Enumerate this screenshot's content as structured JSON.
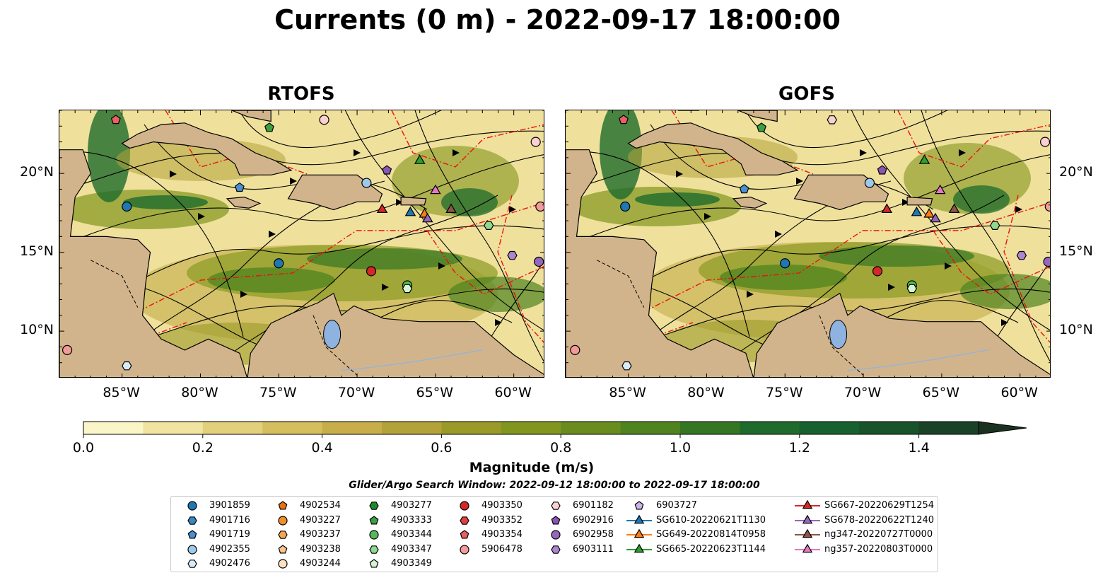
{
  "title": "Currents (0 m) - 2022-09-17 18:00:00",
  "panels": [
    {
      "id": "rtofs",
      "title": "RTOFS"
    },
    {
      "id": "gofs",
      "title": "GOFS"
    }
  ],
  "map_extent": {
    "lon": [
      -89,
      -58
    ],
    "lat": [
      7,
      24
    ]
  },
  "lat_ticks": [
    "20°N",
    "15°N",
    "10°N"
  ],
  "lat_values": [
    20,
    15,
    10
  ],
  "lon_ticks": [
    "85°W",
    "80°W",
    "75°W",
    "70°W",
    "65°W",
    "60°W"
  ],
  "lon_values": [
    -85,
    -80,
    -75,
    -70,
    -65,
    -60
  ],
  "colorbar": {
    "label": "Magnitude (m/s)",
    "ticks": [
      "0.0",
      "0.2",
      "0.4",
      "0.6",
      "0.8",
      "1.0",
      "1.2",
      "1.4"
    ],
    "tick_values": [
      0,
      0.2,
      0.4,
      0.6,
      0.8,
      1.0,
      1.2,
      1.4
    ],
    "range": [
      0,
      1.5
    ],
    "colors": [
      "#fbf6c8",
      "#f0e4a0",
      "#e3d07c",
      "#d5be5e",
      "#c8ae4a",
      "#b3a23a",
      "#9a9a28",
      "#82951e",
      "#6a8c1e",
      "#4f8320",
      "#357624",
      "#1f6b2c",
      "#176030",
      "#18532b",
      "#1a4226",
      "#1b3120"
    ]
  },
  "search_window": "Glider/Argo Search Window: 2022-09-12 18:00:00 to 2022-09-17 18:00:00",
  "legend": {
    "columns": [
      [
        {
          "label": "3901859",
          "marker": "circle",
          "color": "#1f77b4"
        },
        {
          "label": "4901716",
          "marker": "hexagon",
          "color": "#3a86c0"
        },
        {
          "label": "4901719",
          "marker": "pentagon",
          "color": "#4a90d0"
        },
        {
          "label": "4902355",
          "marker": "circle",
          "color": "#9ecae9"
        },
        {
          "label": "4902476",
          "marker": "hexagon",
          "color": "#d8ecf8"
        }
      ],
      [
        {
          "label": "4902534",
          "marker": "pentagon",
          "color": "#e8720f"
        },
        {
          "label": "4903227",
          "marker": "circle",
          "color": "#f28e2b"
        },
        {
          "label": "4903237",
          "marker": "hexagon",
          "color": "#f7a452"
        },
        {
          "label": "4903238",
          "marker": "pentagon",
          "color": "#fbc58c"
        },
        {
          "label": "4903244",
          "marker": "circle",
          "color": "#fde3c3"
        }
      ],
      [
        {
          "label": "4903277",
          "marker": "hexagon",
          "color": "#1a8a2a"
        },
        {
          "label": "4903333",
          "marker": "pentagon",
          "color": "#3aa040"
        },
        {
          "label": "4903344",
          "marker": "circle",
          "color": "#59b85a"
        },
        {
          "label": "4903347",
          "marker": "hexagon",
          "color": "#90d890"
        },
        {
          "label": "4903349",
          "marker": "pentagon",
          "color": "#d3f5d0"
        }
      ],
      [
        {
          "label": "4903350",
          "marker": "circle",
          "color": "#d62728"
        },
        {
          "label": "4903352",
          "marker": "hexagon",
          "color": "#e04040"
        },
        {
          "label": "4903354",
          "marker": "pentagon",
          "color": "#e86060"
        },
        {
          "label": "5906478",
          "marker": "circle",
          "color": "#f39a9a"
        }
      ],
      [
        {
          "label": "6901182",
          "marker": "hexagon",
          "color": "#fbd0d0"
        },
        {
          "label": "6902916",
          "marker": "pentagon",
          "color": "#8a55b5"
        },
        {
          "label": "6902958",
          "marker": "circle",
          "color": "#9467bd"
        },
        {
          "label": "6903111",
          "marker": "hexagon",
          "color": "#ad86d0"
        }
      ],
      [
        {
          "label": "6903727",
          "marker": "pentagon",
          "color": "#cdb3e6"
        },
        {
          "label": "SG610-20220621T1130",
          "marker": "triangle",
          "color": "#1f77b4"
        },
        {
          "label": "SG649-20220814T0958",
          "marker": "triangle",
          "color": "#ff7f0e"
        },
        {
          "label": "SG665-20220623T1144",
          "marker": "triangle",
          "color": "#2ca02c"
        }
      ],
      [
        {
          "label": "SG667-20220629T1254",
          "marker": "triangle",
          "color": "#d62728"
        },
        {
          "label": "SG678-20220622T1240",
          "marker": "triangle",
          "color": "#9467bd"
        },
        {
          "label": "ng347-20220727T0000",
          "marker": "triangle",
          "color": "#8c564b"
        },
        {
          "label": "ng357-20220803T0000",
          "marker": "triangle",
          "color": "#e377c2"
        }
      ]
    ]
  },
  "platforms_rtofs": [
    {
      "lon": -84.7,
      "lat": 17.9,
      "marker": "circle",
      "color": "#1f77b4"
    },
    {
      "lon": -77.5,
      "lat": 19.1,
      "marker": "pentagon",
      "color": "#4a90d0"
    },
    {
      "lon": -75.0,
      "lat": 14.3,
      "marker": "circle",
      "color": "#1f77b4"
    },
    {
      "lon": -69.4,
      "lat": 19.4,
      "marker": "circle",
      "color": "#9ecae9"
    },
    {
      "lon": -84.7,
      "lat": 7.8,
      "marker": "hexagon",
      "color": "#d8ecf8"
    },
    {
      "lon": -75.6,
      "lat": 22.9,
      "marker": "pentagon",
      "color": "#3aa040"
    },
    {
      "lon": -68.1,
      "lat": 20.2,
      "marker": "pentagon",
      "color": "#8a55b5"
    },
    {
      "lon": -66.0,
      "lat": 20.8,
      "marker": "triangle",
      "color": "#2ca02c"
    },
    {
      "lon": -68.4,
      "lat": 17.7,
      "marker": "triangle",
      "color": "#d62728"
    },
    {
      "lon": -66.6,
      "lat": 17.5,
      "marker": "triangle",
      "color": "#1f77b4"
    },
    {
      "lon": -65.7,
      "lat": 17.4,
      "marker": "triangle",
      "color": "#ff7f0e"
    },
    {
      "lon": -65.5,
      "lat": 17.1,
      "marker": "triangle",
      "color": "#9467bd"
    },
    {
      "lon": -64.0,
      "lat": 17.7,
      "marker": "triangle",
      "color": "#8c564b"
    },
    {
      "lon": -65.0,
      "lat": 18.9,
      "marker": "triangle",
      "color": "#e377c2"
    },
    {
      "lon": -69.1,
      "lat": 13.8,
      "marker": "circle",
      "color": "#d62728"
    },
    {
      "lon": -66.8,
      "lat": 12.9,
      "marker": "circle",
      "color": "#59b85a"
    },
    {
      "lon": -66.8,
      "lat": 12.7,
      "marker": "hexagon",
      "color": "#d3f5d0"
    },
    {
      "lon": -61.6,
      "lat": 16.7,
      "marker": "hexagon",
      "color": "#90d890"
    },
    {
      "lon": -60.1,
      "lat": 14.8,
      "marker": "hexagon",
      "color": "#ad86d0"
    },
    {
      "lon": -58.4,
      "lat": 14.4,
      "marker": "circle",
      "color": "#9467bd"
    },
    {
      "lon": -58.3,
      "lat": 17.9,
      "marker": "circle",
      "color": "#f39a9a"
    },
    {
      "lon": -58.6,
      "lat": 22.0,
      "marker": "circle",
      "color": "#fbd0d0"
    },
    {
      "lon": -72.1,
      "lat": 23.4,
      "marker": "circle",
      "color": "#fbd0d0"
    },
    {
      "lon": -85.4,
      "lat": 23.4,
      "marker": "pentagon",
      "color": "#e86060"
    },
    {
      "lon": -88.5,
      "lat": 8.8,
      "marker": "circle",
      "color": "#f39a9a"
    }
  ],
  "platforms_gofs": [
    {
      "lon": -85.2,
      "lat": 17.9,
      "marker": "circle",
      "color": "#1f77b4"
    },
    {
      "lon": -77.6,
      "lat": 19.0,
      "marker": "pentagon",
      "color": "#4a90d0"
    },
    {
      "lon": -75.0,
      "lat": 14.3,
      "marker": "circle",
      "color": "#1f77b4"
    },
    {
      "lon": -69.6,
      "lat": 19.4,
      "marker": "circle",
      "color": "#9ecae9"
    },
    {
      "lon": -85.1,
      "lat": 7.8,
      "marker": "hexagon",
      "color": "#d8ecf8"
    },
    {
      "lon": -76.5,
      "lat": 22.9,
      "marker": "pentagon",
      "color": "#3aa040"
    },
    {
      "lon": -68.8,
      "lat": 20.2,
      "marker": "pentagon",
      "color": "#8a55b5"
    },
    {
      "lon": -66.1,
      "lat": 20.8,
      "marker": "triangle",
      "color": "#2ca02c"
    },
    {
      "lon": -68.5,
      "lat": 17.7,
      "marker": "triangle",
      "color": "#d62728"
    },
    {
      "lon": -66.6,
      "lat": 17.5,
      "marker": "triangle",
      "color": "#1f77b4"
    },
    {
      "lon": -65.8,
      "lat": 17.4,
      "marker": "triangle",
      "color": "#ff7f0e"
    },
    {
      "lon": -65.4,
      "lat": 17.1,
      "marker": "triangle",
      "color": "#9467bd"
    },
    {
      "lon": -64.2,
      "lat": 17.7,
      "marker": "triangle",
      "color": "#8c564b"
    },
    {
      "lon": -65.1,
      "lat": 18.9,
      "marker": "triangle",
      "color": "#e377c2"
    },
    {
      "lon": -69.1,
      "lat": 13.8,
      "marker": "circle",
      "color": "#d62728"
    },
    {
      "lon": -66.9,
      "lat": 12.9,
      "marker": "circle",
      "color": "#59b85a"
    },
    {
      "lon": -66.9,
      "lat": 12.7,
      "marker": "hexagon",
      "color": "#d3f5d0"
    },
    {
      "lon": -61.6,
      "lat": 16.7,
      "marker": "hexagon",
      "color": "#90d890"
    },
    {
      "lon": -59.9,
      "lat": 14.8,
      "marker": "hexagon",
      "color": "#ad86d0"
    },
    {
      "lon": -58.2,
      "lat": 14.4,
      "marker": "circle",
      "color": "#9467bd"
    },
    {
      "lon": -58.1,
      "lat": 17.9,
      "marker": "circle",
      "color": "#f39a9a"
    },
    {
      "lon": -58.4,
      "lat": 22.0,
      "marker": "circle",
      "color": "#fbd0d0"
    },
    {
      "lon": -72.0,
      "lat": 23.4,
      "marker": "hexagon",
      "color": "#fbd0d0"
    },
    {
      "lon": -85.3,
      "lat": 23.4,
      "marker": "pentagon",
      "color": "#e86060"
    },
    {
      "lon": -88.4,
      "lat": 8.8,
      "marker": "circle",
      "color": "#f39a9a"
    }
  ]
}
